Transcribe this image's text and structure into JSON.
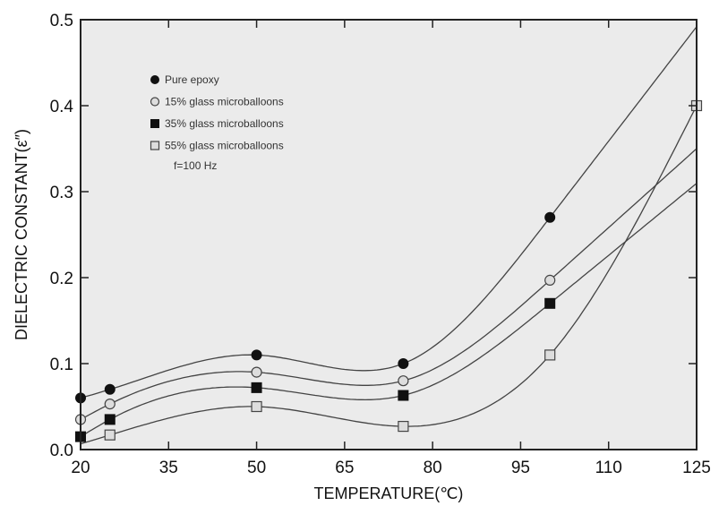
{
  "chart_data": {
    "type": "scatter",
    "xlabel": "TEMPERATURE(℃)",
    "ylabel": "DIELECTRIC CONSTANT(ε″)",
    "xlim": [
      20,
      125
    ],
    "ylim": [
      0.0,
      0.5
    ],
    "x_ticks": [
      "20",
      "35",
      "50",
      "65",
      "80",
      "95",
      "110",
      "125"
    ],
    "y_ticks": [
      "0.0",
      "0.1",
      "0.2",
      "0.3",
      "0.4",
      "0.5"
    ],
    "grid": false,
    "legend_position": "top-left",
    "annotation": "f=100 Hz",
    "series": [
      {
        "name": "Pure epoxy",
        "marker": "filled-circle",
        "x": [
          20,
          25,
          50,
          75,
          100
        ],
        "y": [
          0.06,
          0.07,
          0.11,
          0.1,
          0.27
        ]
      },
      {
        "name": "15% glass microballoons",
        "marker": "open-circle",
        "x": [
          20,
          25,
          50,
          75,
          100
        ],
        "y": [
          0.035,
          0.053,
          0.09,
          0.08,
          0.197
        ]
      },
      {
        "name": "35% glass microballoons",
        "marker": "filled-square",
        "x": [
          20,
          25,
          50,
          75,
          100
        ],
        "y": [
          0.015,
          0.035,
          0.072,
          0.063,
          0.17
        ]
      },
      {
        "name": "55% glass microballoons",
        "marker": "open-square",
        "x": [
          25,
          50,
          75,
          100,
          125
        ],
        "y": [
          0.017,
          0.05,
          0.027,
          0.11,
          0.4
        ]
      }
    ]
  }
}
